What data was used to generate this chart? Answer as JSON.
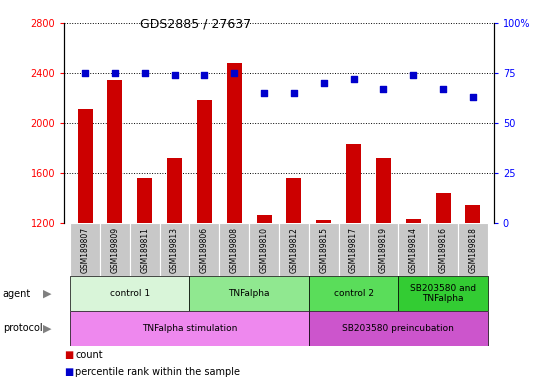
{
  "title": "GDS2885 / 27637",
  "samples": [
    "GSM189807",
    "GSM189809",
    "GSM189811",
    "GSM189813",
    "GSM189806",
    "GSM189808",
    "GSM189810",
    "GSM189812",
    "GSM189815",
    "GSM189817",
    "GSM189819",
    "GSM189814",
    "GSM189816",
    "GSM189818"
  ],
  "bar_values": [
    2110,
    2340,
    1560,
    1720,
    2180,
    2480,
    1260,
    1560,
    1220,
    1830,
    1720,
    1230,
    1440,
    1340
  ],
  "scatter_values": [
    75,
    75,
    75,
    74,
    74,
    75,
    65,
    65,
    70,
    72,
    67,
    74,
    67,
    63
  ],
  "ylim_left": [
    1200,
    2800
  ],
  "ylim_right": [
    0,
    100
  ],
  "yticks_left": [
    1200,
    1600,
    2000,
    2400,
    2800
  ],
  "yticks_right": [
    0,
    25,
    50,
    75,
    100
  ],
  "bar_color": "#cc0000",
  "scatter_color": "#0000cc",
  "agent_groups": [
    {
      "label": "control 1",
      "start": 0,
      "end": 4,
      "color": "#d9f5d9"
    },
    {
      "label": "TNFalpha",
      "start": 4,
      "end": 8,
      "color": "#90e890"
    },
    {
      "label": "control 2",
      "start": 8,
      "end": 11,
      "color": "#5add5a"
    },
    {
      "label": "SB203580 and\nTNFalpha",
      "start": 11,
      "end": 14,
      "color": "#33cc33"
    }
  ],
  "protocol_groups": [
    {
      "label": "TNFalpha stimulation",
      "start": 0,
      "end": 8,
      "color": "#ee88ee"
    },
    {
      "label": "SB203580 preincubation",
      "start": 8,
      "end": 14,
      "color": "#cc55cc"
    }
  ],
  "sample_bg_color": "#c8c8c8",
  "legend_count_color": "#cc0000",
  "legend_scatter_color": "#0000cc"
}
